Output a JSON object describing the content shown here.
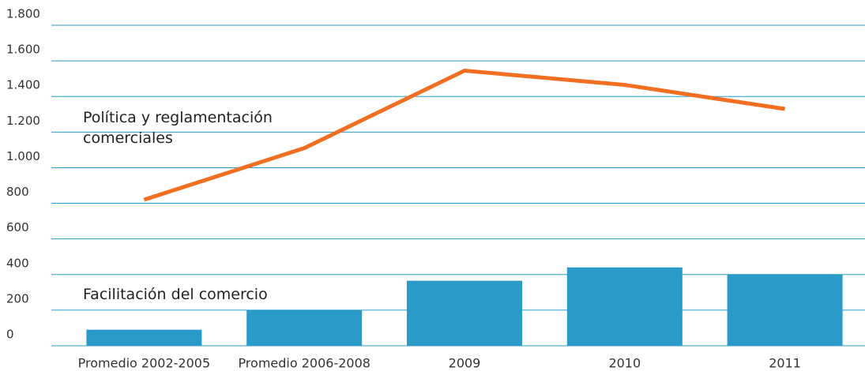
{
  "chart_data": {
    "type": "bar",
    "categories": [
      "Promedio 2002-2005",
      "Promedio 2006-2008",
      "2009",
      "2010",
      "2011"
    ],
    "series": [
      {
        "name": "Facilitación del comercio",
        "type": "bar",
        "color": "#2a9bc8",
        "values": [
          90,
          200,
          365,
          440,
          400
        ]
      },
      {
        "name": "Política y reglamentación comerciales",
        "type": "line",
        "color": "#f26f21",
        "values": [
          820,
          1110,
          1545,
          1465,
          1330
        ]
      }
    ],
    "ylim": [
      0,
      1800
    ],
    "yticks": [
      0,
      200,
      400,
      600,
      800,
      {
        "value": 1000,
        "label": "1.000"
      },
      {
        "value": 1200,
        "label": "1.200"
      },
      {
        "value": 1400,
        "label": "1.400"
      },
      {
        "value": 1600,
        "label": "1.600"
      },
      {
        "value": 1800,
        "label": "1.800"
      }
    ],
    "grid": true
  }
}
